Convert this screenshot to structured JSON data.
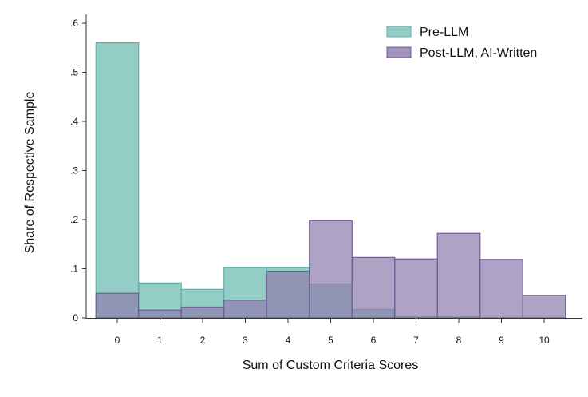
{
  "colors": {
    "pre_fill": "#93cdc5",
    "pre_stroke": "#5fb1a8",
    "post_fill": "#8f7fae",
    "post_stroke": "#6e5e96",
    "axis": "#333333",
    "background": "#ffffff"
  },
  "chart_data": {
    "type": "bar",
    "title": "",
    "xlabel": "Sum of Custom Criteria Scores",
    "ylabel": "Share of Respective Sample",
    "categories": [
      "0",
      "1",
      "2",
      "3",
      "4",
      "5",
      "6",
      "7",
      "8",
      "9",
      "10"
    ],
    "x": [
      0,
      1,
      2,
      3,
      4,
      5,
      6,
      7,
      8,
      9,
      10
    ],
    "ylim": [
      0,
      0.6
    ],
    "yticks": [
      0,
      0.1,
      0.2,
      0.3,
      0.4,
      0.5,
      0.6
    ],
    "ytick_labels": [
      "0",
      ".1",
      ".2",
      ".3",
      ".4",
      ".5",
      ".6"
    ],
    "grid": false,
    "legend_position": "top-right",
    "series": [
      {
        "name": "Pre-LLM",
        "values": [
          0.56,
          0.071,
          0.058,
          0.103,
          0.103,
          0.069,
          0.017,
          0.004,
          0.004,
          0.0,
          0.0
        ]
      },
      {
        "name": "Post-LLM, AI-Written",
        "values": [
          0.05,
          0.016,
          0.022,
          0.036,
          0.095,
          0.198,
          0.123,
          0.12,
          0.172,
          0.119,
          0.046
        ]
      }
    ]
  }
}
